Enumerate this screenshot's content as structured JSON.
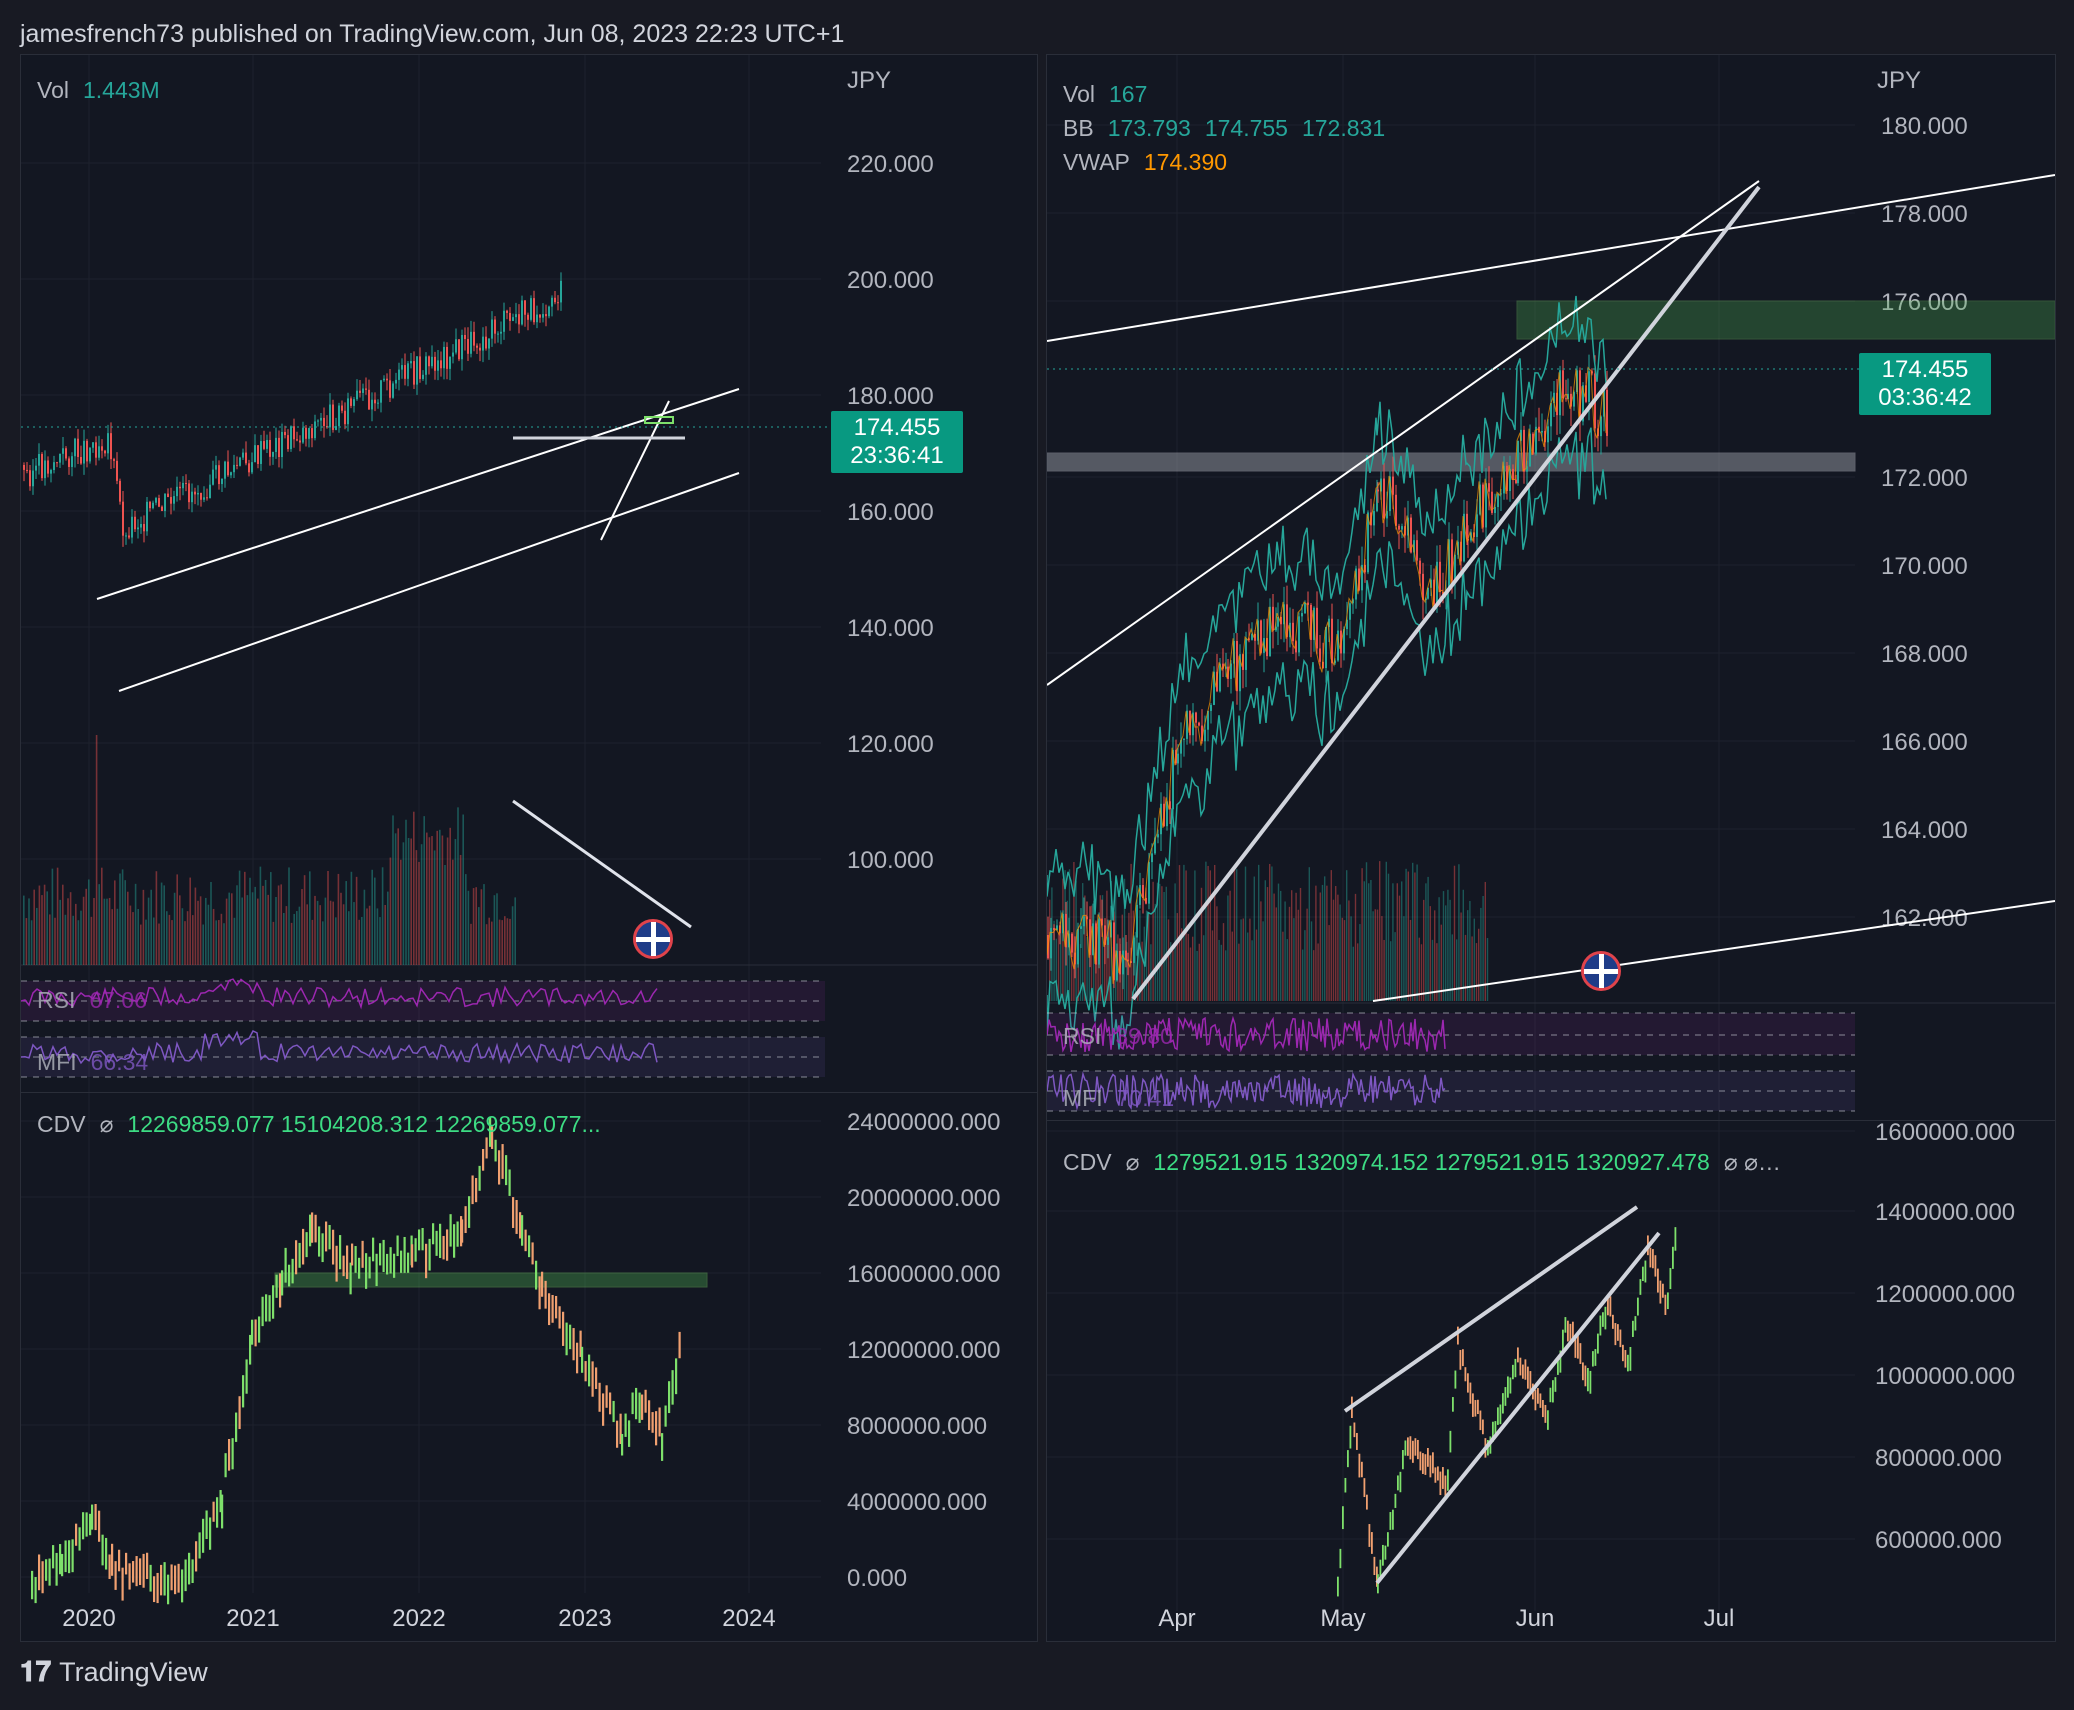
{
  "header": "jamesfrench73 published on TradingView.com, Jun 08, 2023 22:23 UTC+1",
  "footer": {
    "brand": "TradingView",
    "logo_icon": "tradingview-logo-icon"
  },
  "colors": {
    "bg": "#131722",
    "up": "#26a69a",
    "down": "#ef5350",
    "accent": "#089981",
    "rsi": "#9c27b0",
    "mfi": "#7e57c2",
    "cdv_up": "#7ee06b",
    "cdv_down": "#f0a070",
    "vwap": "#ff9800"
  },
  "left": {
    "vol_label": "Vol",
    "vol_value": "1.443M",
    "currency": "JPY",
    "price_ticks": [
      "220.000",
      "200.000",
      "180.000",
      "160.000",
      "140.000",
      "120.000",
      "100.000"
    ],
    "last_price": "174.455",
    "countdown": "23:36:41",
    "rsi_label": "RSI",
    "rsi_value": "67.06",
    "mfi_label": "MFI",
    "mfi_value": "66.34",
    "cdv_label": "CDV",
    "cdv_values": "12269859.077   15104208.312   12269859.077...",
    "cdv_ticks": [
      "24000000.000",
      "20000000.000",
      "16000000.000",
      "12000000.000",
      "8000000.000",
      "4000000.000",
      "0.000"
    ],
    "x_ticks": [
      "2020",
      "2021",
      "2022",
      "2023",
      "2024"
    ]
  },
  "right": {
    "vol_label": "Vol",
    "vol_value": "167",
    "bb_label": "BB",
    "bb_values": [
      "173.793",
      "174.755",
      "172.831"
    ],
    "vwap_label": "VWAP",
    "vwap_value": "174.390",
    "currency": "JPY",
    "price_ticks": [
      "180.000",
      "178.000",
      "176.000",
      "172.000",
      "170.000",
      "168.000",
      "166.000",
      "164.000",
      "162.000"
    ],
    "last_price": "174.455",
    "countdown": "03:36:42",
    "rsi_label": "RSI",
    "rsi_value": "39.80",
    "mfi_label": "MFI",
    "mfi_value": "70.41",
    "cdv_label": "CDV",
    "cdv_values": "1279521.915   1320974.152   1279521.915   1320927.478",
    "cdv_ticks": [
      "1600000.000",
      "1400000.000",
      "1200000.000",
      "1000000.000",
      "800000.000",
      "600000.000"
    ],
    "x_ticks": [
      "Apr",
      "May",
      "Jun",
      "Jul"
    ]
  },
  "chart_data": [
    {
      "type": "candlestick",
      "title": "",
      "currency": "JPY",
      "ylim": [
        90,
        230
      ],
      "x_ticks": [
        "2020",
        "2021",
        "2022",
        "2023",
        "2024"
      ],
      "last": 174.455
    },
    {
      "type": "line",
      "title": "CDV",
      "ylim": [
        0,
        24000000
      ],
      "x_ticks": [
        "2020",
        "2021",
        "2022",
        "2023",
        "2024"
      ],
      "last": 12269859.077
    },
    {
      "type": "candlestick",
      "title": "",
      "currency": "JPY",
      "ylim": [
        160.5,
        181
      ],
      "x_ticks": [
        "Apr",
        "May",
        "Jun",
        "Jul"
      ],
      "last": 174.455,
      "bb": [
        173.793,
        174.755,
        172.831
      ],
      "vwap": 174.39
    },
    {
      "type": "line",
      "title": "CDV",
      "ylim": [
        500000,
        1650000
      ],
      "x_ticks": [
        "Apr",
        "May",
        "Jun",
        "Jul"
      ],
      "last": 1279521.915
    }
  ]
}
